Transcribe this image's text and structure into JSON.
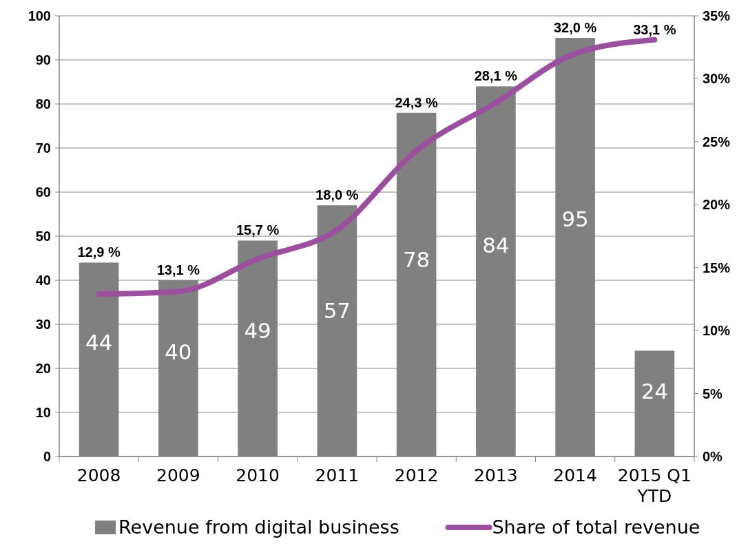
{
  "chart_data": {
    "type": "bar",
    "categories": [
      "2008",
      "2009",
      "2010",
      "2011",
      "2012",
      "2013",
      "2014",
      "2015 Q1 YTD"
    ],
    "series": [
      {
        "name": "Revenue from digital business",
        "color": "#808080",
        "values": [
          44,
          40,
          49,
          57,
          78,
          84,
          95,
          24
        ],
        "data_labels": true
      },
      {
        "name": "Share of total revenue",
        "type": "line",
        "axis": "y2",
        "color": "#9b4f9e",
        "values": [
          12.9,
          13.1,
          15.7,
          18.0,
          24.3,
          28.1,
          32.0,
          33.1
        ],
        "value_labels": [
          "12,9 %",
          "13,1 %",
          "15,7 %",
          "18,0 %",
          "24,3 %",
          "28,1 %",
          "32,0 %",
          "33,1 %"
        ]
      }
    ],
    "ylim": [
      0,
      100
    ],
    "yticks": [
      0,
      10,
      20,
      30,
      40,
      50,
      60,
      70,
      80,
      90,
      100
    ],
    "y2lim": [
      0,
      35
    ],
    "y2ticks": [
      {
        "value": 0,
        "label": "0%"
      },
      {
        "value": 5,
        "label": "5%"
      },
      {
        "value": 10,
        "label": "10%"
      },
      {
        "value": 15,
        "label": "15%"
      },
      {
        "value": 20,
        "label": "20%"
      },
      {
        "value": 25,
        "label": "25%"
      },
      {
        "value": 30,
        "label": "30%"
      },
      {
        "value": 35,
        "label": "35%"
      }
    ],
    "grid": "y",
    "legend": "bottom",
    "marker": "none",
    "line_style": "solid"
  }
}
